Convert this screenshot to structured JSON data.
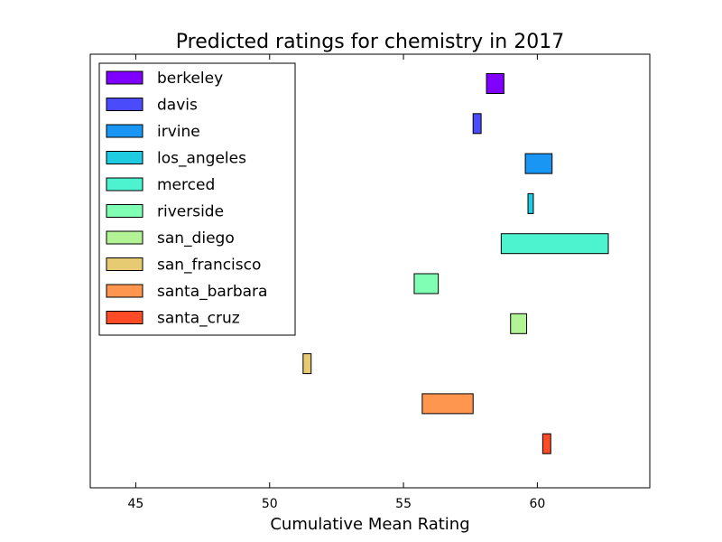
{
  "chart_data": {
    "type": "bar",
    "orientation": "horizontal-range",
    "title": "Predicted ratings for chemistry in 2017",
    "xlabel": "Cumulative Mean Rating",
    "ylabel": "",
    "xlim": [
      43.3,
      64.2
    ],
    "xticks": [
      45,
      50,
      55,
      60
    ],
    "grid": false,
    "legend_position": "top-left",
    "series": [
      {
        "name": "berkeley",
        "low": 58.1,
        "high": 58.75,
        "color": "#8000ff"
      },
      {
        "name": "davis",
        "low": 57.6,
        "high": 57.9,
        "color": "#4a4cfc"
      },
      {
        "name": "irvine",
        "low": 59.55,
        "high": 60.55,
        "color": "#1996f3"
      },
      {
        "name": "los_angeles",
        "low": 59.65,
        "high": 59.85,
        "color": "#1ecbe0"
      },
      {
        "name": "merced",
        "low": 58.65,
        "high": 62.65,
        "color": "#4df3ce"
      },
      {
        "name": "riverside",
        "low": 55.4,
        "high": 56.3,
        "color": "#80ffb4"
      },
      {
        "name": "san_diego",
        "low": 59.0,
        "high": 59.6,
        "color": "#b2f396"
      },
      {
        "name": "san_francisco",
        "low": 51.25,
        "high": 51.55,
        "color": "#e6cb73"
      },
      {
        "name": "santa_barbara",
        "low": 55.7,
        "high": 57.6,
        "color": "#ff964f"
      },
      {
        "name": "santa_cruz",
        "low": 60.2,
        "high": 60.5,
        "color": "#ff4b26"
      }
    ]
  }
}
